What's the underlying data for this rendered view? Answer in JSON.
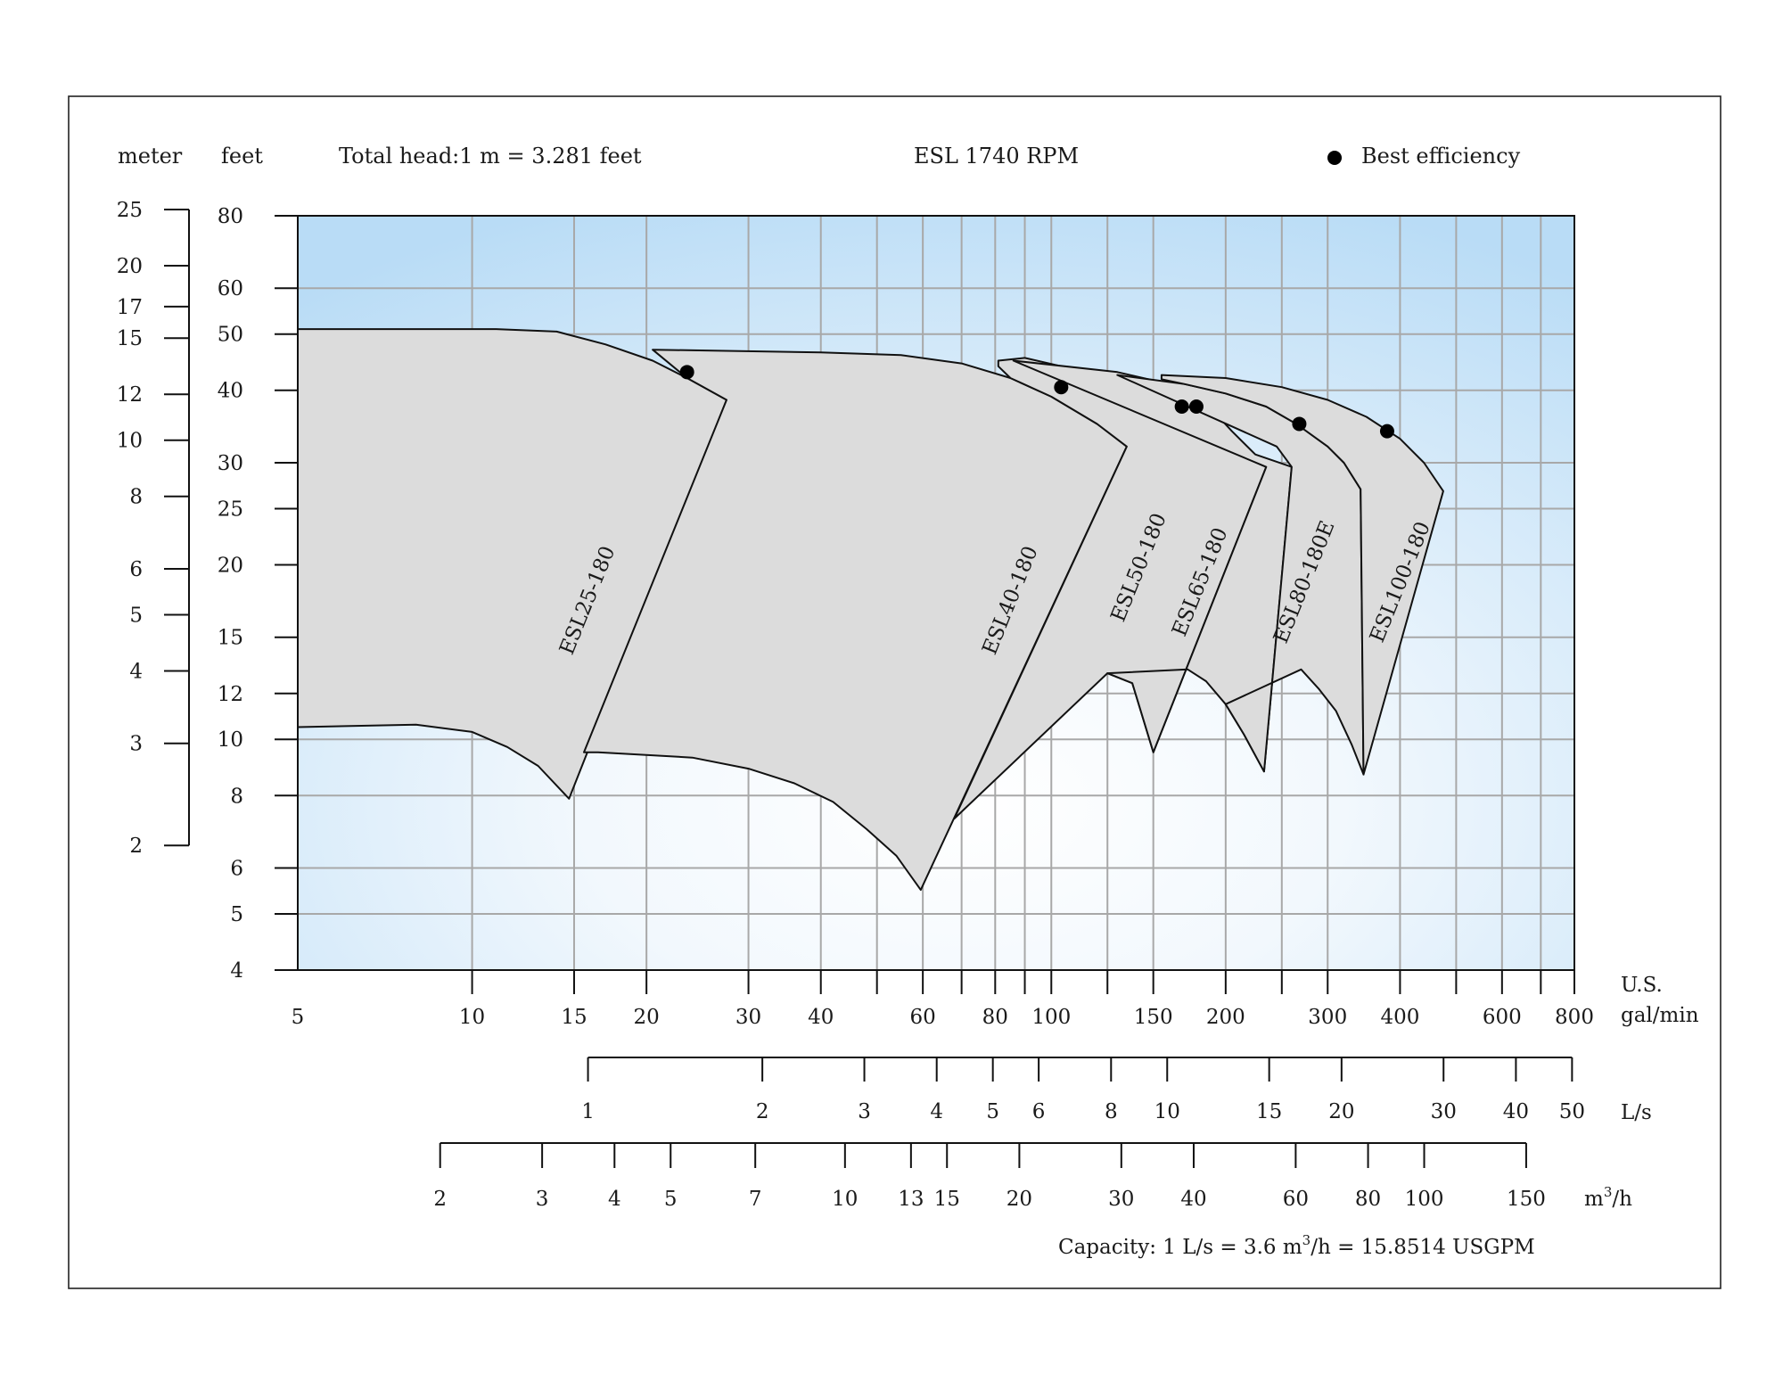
{
  "header": {
    "meter_label": "meter",
    "feet_label": "feet",
    "conversion_note": "Total head:1 m = 3.281 feet",
    "title": "ESL 1740 RPM",
    "legend_label": "Best efficiency"
  },
  "axes": {
    "x_unit_line1": "U.S.",
    "x_unit_line2": "gal/min",
    "ls_unit": "L/s",
    "m3h_unit_base": "m",
    "m3h_unit_sup": "3",
    "m3h_unit_tail": "/h",
    "capacity_note_1": "Capacity: 1 L/s = 3.6 m",
    "capacity_note_sup": "3",
    "capacity_note_2": "/h = 15.8514 USGPM"
  },
  "colors": {
    "region_fill": "#dcdcdc",
    "grid": "#a8a8a8",
    "background_edge": "#b9dcf6",
    "background_center": "#ffffff"
  },
  "chart_data": {
    "type": "area",
    "title": "ESL 1740 RPM",
    "x_scale": "log",
    "y_scale": "log",
    "xlim": [
      5,
      800
    ],
    "ylim": [
      4,
      80
    ],
    "grid": true,
    "legend_placement": "top-right",
    "x_ticks": [
      5,
      10,
      15,
      20,
      30,
      40,
      60,
      80,
      100,
      150,
      200,
      300,
      400,
      600,
      800
    ],
    "x_gridlines": [
      10,
      15,
      20,
      30,
      40,
      50,
      60,
      70,
      80,
      90,
      100,
      125,
      150,
      200,
      250,
      300,
      400,
      500,
      600,
      700
    ],
    "y_ticks_feet": [
      80,
      60,
      50,
      40,
      30,
      25,
      20,
      15,
      12,
      10,
      8,
      6,
      5,
      4
    ],
    "y_ticks_meter": [
      25,
      20,
      17,
      15,
      12,
      10,
      8,
      6,
      5,
      4,
      3,
      2
    ],
    "ls_ticks": [
      1,
      2,
      3,
      4,
      5,
      6,
      8,
      10,
      15,
      20,
      30,
      40,
      50
    ],
    "m3h_ticks": [
      2,
      3,
      4,
      5,
      7,
      10,
      13,
      15,
      20,
      30,
      40,
      60,
      80,
      100,
      150
    ],
    "models": [
      {
        "name": "ESL25-180",
        "outline": [
          [
            5,
            51
          ],
          [
            11,
            51
          ],
          [
            14,
            50.5
          ],
          [
            17,
            48
          ],
          [
            20.5,
            45
          ],
          [
            23.5,
            42
          ],
          [
            27.5,
            38.5
          ],
          [
            14.7,
            7.9
          ],
          [
            13,
            9
          ],
          [
            11.5,
            9.7
          ],
          [
            10,
            10.3
          ],
          [
            8,
            10.6
          ],
          [
            5,
            10.5
          ]
        ],
        "bep": [
          23.5,
          43
        ],
        "label_at": [
          16.2,
          17.2
        ]
      },
      {
        "name": "ESL40-180",
        "outline": [
          [
            20.5,
            47
          ],
          [
            40,
            46.5
          ],
          [
            55,
            46
          ],
          [
            70,
            44.5
          ],
          [
            85,
            42
          ],
          [
            100,
            39
          ],
          [
            120,
            35
          ],
          [
            135,
            32
          ],
          [
            59.5,
            5.5
          ],
          [
            54,
            6.3
          ],
          [
            48,
            7
          ],
          [
            42,
            7.8
          ],
          [
            36,
            8.4
          ],
          [
            30,
            8.9
          ],
          [
            24,
            9.3
          ],
          [
            16.5,
            9.5
          ],
          [
            15.6,
            9.5
          ],
          [
            27.5,
            38.5
          ],
          [
            23.5,
            42
          ]
        ],
        "bep": [
          104,
          40.5
        ],
        "label_at": [
          87,
          17.2
        ]
      },
      {
        "name": "ESL50-180",
        "outline": [
          [
            81,
            45
          ],
          [
            90,
            45.5
          ],
          [
            115,
            43
          ],
          [
            140,
            40
          ],
          [
            160,
            37
          ],
          [
            185,
            34
          ],
          [
            210,
            31
          ],
          [
            235,
            29.5
          ],
          [
            150,
            9.5
          ],
          [
            138,
            12.5
          ],
          [
            125,
            13
          ],
          [
            68,
            7.3
          ],
          [
            135,
            32
          ],
          [
            120,
            35
          ],
          [
            100,
            39
          ],
          [
            85,
            42
          ],
          [
            81,
            44
          ]
        ],
        "bep": [
          168,
          37.5
        ],
        "label_at": [
          145,
          19.6
        ]
      },
      {
        "name": "ESL65-180",
        "outline": [
          [
            86,
            45
          ],
          [
            130,
            43
          ],
          [
            160,
            41
          ],
          [
            185,
            38
          ],
          [
            205,
            34
          ],
          [
            225,
            31
          ],
          [
            260,
            29.5
          ],
          [
            233,
            8.8
          ],
          [
            215,
            10.2
          ],
          [
            200,
            11.5
          ],
          [
            185,
            12.6
          ],
          [
            172,
            13.2
          ],
          [
            125,
            13
          ],
          [
            138,
            12.5
          ],
          [
            150,
            9.5
          ],
          [
            235,
            29.5
          ]
        ],
        "bep": [
          178,
          37.5
        ],
        "label_at": [
          185,
          18.5
        ]
      },
      {
        "name": "ESL80-180E",
        "outline": [
          [
            130,
            42.5
          ],
          [
            170,
            41
          ],
          [
            200,
            39.5
          ],
          [
            235,
            37.5
          ],
          [
            265,
            35
          ],
          [
            300,
            32
          ],
          [
            320,
            30
          ],
          [
            342,
            27
          ],
          [
            346,
            8.7
          ],
          [
            330,
            9.8
          ],
          [
            310,
            11.2
          ],
          [
            290,
            12.2
          ],
          [
            270,
            13.2
          ],
          [
            200,
            11.5
          ],
          [
            215,
            10.2
          ],
          [
            233,
            8.8
          ],
          [
            260,
            29.5
          ],
          [
            245,
            32
          ]
        ],
        "bep": [
          268,
          35
        ],
        "label_at": [
          280,
          18.5
        ]
      },
      {
        "name": "ESL100-180",
        "outline": [
          [
            155,
            42.5
          ],
          [
            200,
            42
          ],
          [
            250,
            40.5
          ],
          [
            300,
            38.5
          ],
          [
            350,
            36
          ],
          [
            400,
            33
          ],
          [
            440,
            30
          ],
          [
            475,
            26.8
          ],
          [
            346,
            8.7
          ],
          [
            342,
            27
          ],
          [
            320,
            30
          ],
          [
            300,
            32
          ],
          [
            265,
            35
          ],
          [
            235,
            37.5
          ],
          [
            200,
            39.5
          ],
          [
            170,
            41
          ],
          [
            155,
            41.8
          ]
        ],
        "bep": [
          380,
          34
        ],
        "label_at": [
          410,
          18.5
        ]
      }
    ]
  }
}
